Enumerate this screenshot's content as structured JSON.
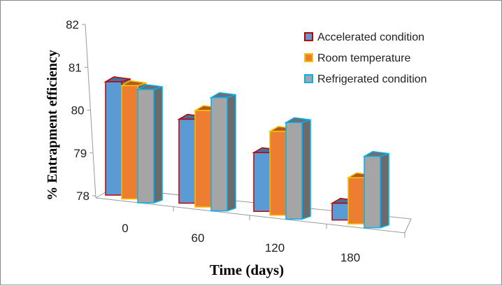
{
  "chart_data": {
    "type": "bar",
    "style": "3d-clustered-column",
    "title": "",
    "xlabel": "Time (days)",
    "ylabel": "% Entrapment efficiency",
    "categories": [
      "0",
      "60",
      "120",
      "180"
    ],
    "ylim": [
      78,
      82
    ],
    "yticks": [
      "78",
      "79",
      "80",
      "81",
      "82"
    ],
    "grid": false,
    "legend_position": "top-right",
    "series": [
      {
        "name": "Accelerated condition",
        "values": [
          80.7,
          80.0,
          79.4,
          78.4
        ],
        "fill": "#5b9bd5",
        "stroke": "#c00000",
        "top": "#41719c"
      },
      {
        "name": "Room temperature",
        "values": [
          80.7,
          80.3,
          80.0,
          79.1
        ],
        "fill": "#ed7d31",
        "stroke": "#ffc000",
        "top": "#b5591f"
      },
      {
        "name": "Refrigerated condition",
        "values": [
          80.7,
          80.7,
          80.3,
          79.7
        ],
        "fill": "#a5a5a5",
        "stroke": "#00b0f0",
        "top": "#6e6e6e"
      }
    ]
  }
}
